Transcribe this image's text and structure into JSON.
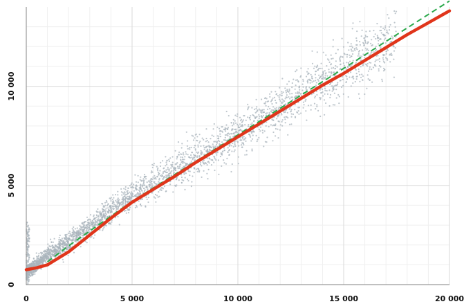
{
  "chart_data": {
    "type": "scatter",
    "title": "",
    "xlabel": "",
    "ylabel": "",
    "xlim": [
      0,
      20000
    ],
    "ylim": [
      0,
      14000
    ],
    "x_ticks": [
      {
        "value": 0,
        "label": "0"
      },
      {
        "value": 5000,
        "label": "5 000"
      },
      {
        "value": 10000,
        "label": "10 000"
      },
      {
        "value": 15000,
        "label": "15 000"
      },
      {
        "value": 20000,
        "label": "20 000"
      }
    ],
    "y_ticks": [
      {
        "value": 0,
        "label": "0"
      },
      {
        "value": 5000,
        "label": "5 000"
      },
      {
        "value": 10000,
        "label": "10 000"
      }
    ],
    "grid": true,
    "legend": "none",
    "colors": {
      "points": "#aab4bc",
      "fit_line": "#e0351b",
      "reference_line": "#2aa84a",
      "grid": "#d9d9d9"
    },
    "series": [
      {
        "type": "scatter",
        "cloud_description_points": [
          [
            0,
            600
          ],
          [
            500,
            1000
          ],
          [
            1000,
            1500
          ],
          [
            2000,
            2100
          ],
          [
            3000,
            2900
          ],
          [
            4000,
            3700
          ],
          [
            5000,
            4500
          ],
          [
            6000,
            5100
          ],
          [
            7000,
            5700
          ],
          [
            8000,
            6400
          ],
          [
            9000,
            7000
          ],
          [
            10000,
            7600
          ],
          [
            11000,
            8200
          ],
          [
            12000,
            8900
          ],
          [
            13000,
            9600
          ],
          [
            14000,
            10300
          ],
          [
            15000,
            10800
          ],
          [
            16000,
            11500
          ],
          [
            17000,
            12100
          ]
        ]
      },
      {
        "type": "line",
        "style": "solid",
        "x": [
          0,
          500,
          1000,
          2000,
          3000,
          4000,
          5000,
          6000,
          7000,
          8000,
          9000,
          10000,
          11000,
          12000,
          13000,
          14000,
          15000,
          16000,
          17000,
          18000,
          19000,
          20000
        ],
        "y": [
          750,
          850,
          1000,
          1650,
          2500,
          3350,
          4150,
          4800,
          5450,
          6150,
          6800,
          7450,
          8100,
          8750,
          9400,
          10050,
          10650,
          11300,
          11950,
          12600,
          13200,
          13800
        ]
      },
      {
        "type": "line",
        "style": "dashed",
        "x": [
          1000,
          2000,
          5000,
          10000,
          15000,
          20000
        ],
        "y": [
          1150,
          1950,
          4200,
          7550,
          10900,
          14300
        ]
      }
    ]
  }
}
